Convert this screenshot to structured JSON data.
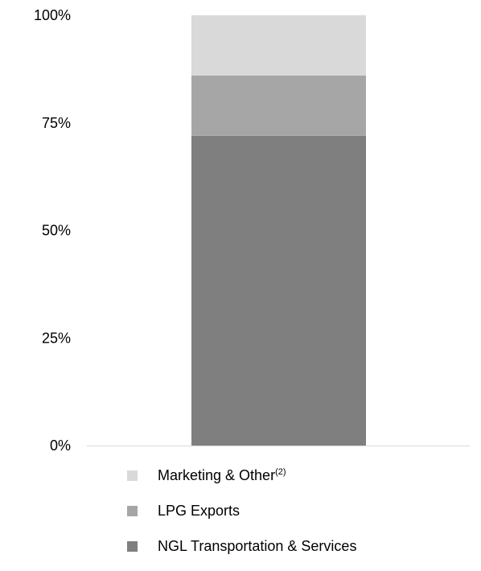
{
  "chart_data": {
    "type": "bar",
    "stacked": true,
    "categories": [
      ""
    ],
    "series": [
      {
        "name": "NGL Transportation & Services",
        "values": [
          72
        ],
        "color": "#7f7f7f"
      },
      {
        "name": "LPG Exports",
        "values": [
          14
        ],
        "color": "#a6a6a6"
      },
      {
        "name": "Marketing & Other",
        "name_superscript": "(2)",
        "values": [
          14
        ],
        "color": "#d9d9d9"
      }
    ],
    "yticks": [
      "0%",
      "25%",
      "50%",
      "75%",
      "100%"
    ],
    "ylim": [
      0,
      100
    ],
    "grid": false,
    "legend_position": "bottom",
    "legend_order": [
      "Marketing & Other",
      "LPG Exports",
      "NGL Transportation & Services"
    ],
    "axis_color": "#d9d9d9"
  }
}
